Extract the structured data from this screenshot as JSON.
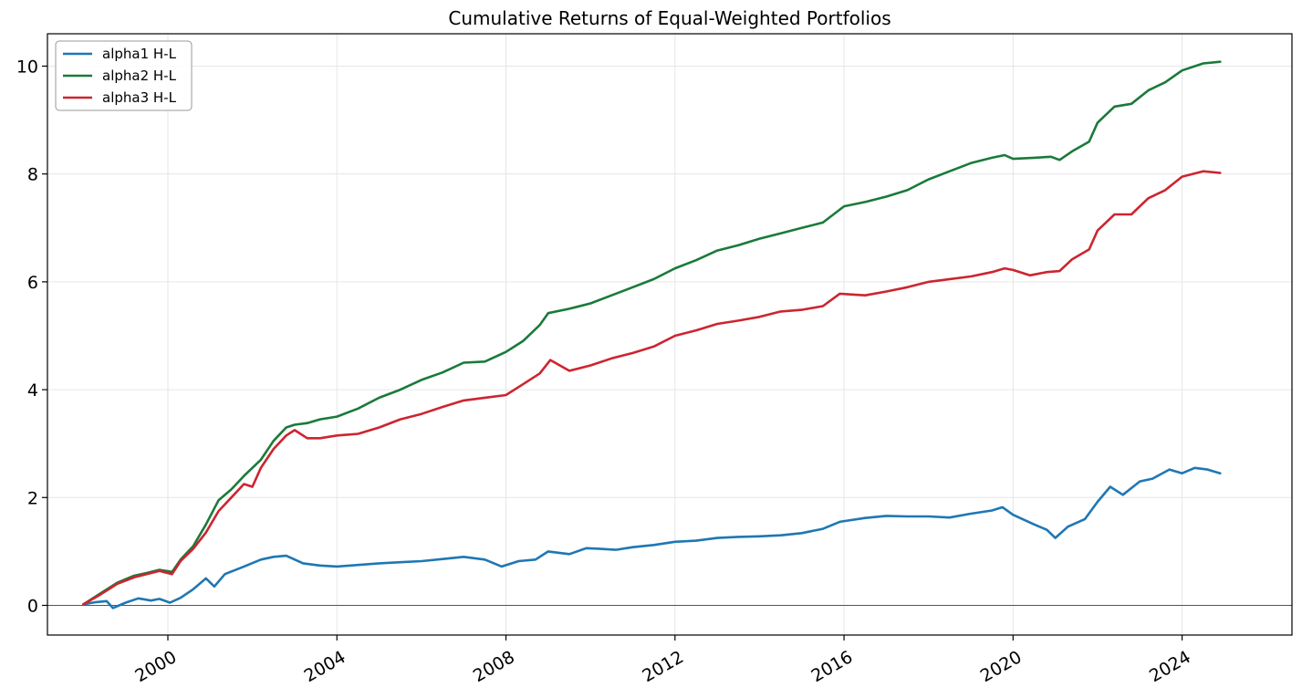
{
  "chart_data": {
    "type": "line",
    "title": "Cumulative Returns of Equal-Weighted Portfolios",
    "xlabel": "",
    "ylabel": "",
    "xlim": [
      1997.15,
      2026.6
    ],
    "ylim": [
      -0.55,
      10.6
    ],
    "x_ticks": [
      2000,
      2004,
      2008,
      2012,
      2016,
      2020,
      2024
    ],
    "x_tick_labels": [
      "2000",
      "2004",
      "2008",
      "2012",
      "2016",
      "2020",
      "2024"
    ],
    "y_ticks": [
      0,
      2,
      4,
      6,
      8,
      10
    ],
    "y_tick_labels": [
      "0",
      "2",
      "4",
      "6",
      "8",
      "10"
    ],
    "grid": true,
    "zero_line": true,
    "legend_position": "top-left",
    "colors": {
      "alpha1": "#1f77b4",
      "alpha2": "#1a7a3a",
      "alpha3": "#cc2530",
      "zero_line": "#555555"
    },
    "series": [
      {
        "name": "alpha1 H-L",
        "color": "#1f77b4",
        "points": [
          [
            1998.0,
            0.02
          ],
          [
            1998.3,
            0.06
          ],
          [
            1998.55,
            0.08
          ],
          [
            1998.7,
            -0.05
          ],
          [
            1999.0,
            0.05
          ],
          [
            1999.3,
            0.13
          ],
          [
            1999.6,
            0.09
          ],
          [
            1999.8,
            0.12
          ],
          [
            2000.05,
            0.05
          ],
          [
            2000.3,
            0.14
          ],
          [
            2000.6,
            0.3
          ],
          [
            2000.9,
            0.5
          ],
          [
            2001.1,
            0.35
          ],
          [
            2001.35,
            0.58
          ],
          [
            2001.8,
            0.72
          ],
          [
            2002.2,
            0.85
          ],
          [
            2002.5,
            0.9
          ],
          [
            2002.8,
            0.92
          ],
          [
            2003.2,
            0.78
          ],
          [
            2003.6,
            0.74
          ],
          [
            2004.0,
            0.72
          ],
          [
            2004.5,
            0.75
          ],
          [
            2005.0,
            0.78
          ],
          [
            2005.5,
            0.8
          ],
          [
            2006.0,
            0.82
          ],
          [
            2006.5,
            0.86
          ],
          [
            2007.0,
            0.9
          ],
          [
            2007.5,
            0.85
          ],
          [
            2007.9,
            0.72
          ],
          [
            2008.3,
            0.82
          ],
          [
            2008.7,
            0.85
          ],
          [
            2009.0,
            1.0
          ],
          [
            2009.5,
            0.95
          ],
          [
            2009.9,
            1.06
          ],
          [
            2010.2,
            1.05
          ],
          [
            2010.6,
            1.03
          ],
          [
            2011.0,
            1.08
          ],
          [
            2011.5,
            1.12
          ],
          [
            2012.0,
            1.18
          ],
          [
            2012.5,
            1.2
          ],
          [
            2013.0,
            1.25
          ],
          [
            2013.5,
            1.27
          ],
          [
            2014.0,
            1.28
          ],
          [
            2014.5,
            1.3
          ],
          [
            2015.0,
            1.34
          ],
          [
            2015.5,
            1.42
          ],
          [
            2015.9,
            1.55
          ],
          [
            2016.5,
            1.62
          ],
          [
            2017.0,
            1.66
          ],
          [
            2017.5,
            1.65
          ],
          [
            2018.0,
            1.65
          ],
          [
            2018.5,
            1.63
          ],
          [
            2019.0,
            1.7
          ],
          [
            2019.5,
            1.76
          ],
          [
            2019.75,
            1.82
          ],
          [
            2020.0,
            1.68
          ],
          [
            2020.5,
            1.5
          ],
          [
            2020.8,
            1.4
          ],
          [
            2021.0,
            1.25
          ],
          [
            2021.3,
            1.46
          ],
          [
            2021.7,
            1.6
          ],
          [
            2022.0,
            1.92
          ],
          [
            2022.3,
            2.2
          ],
          [
            2022.6,
            2.05
          ],
          [
            2023.0,
            2.3
          ],
          [
            2023.3,
            2.35
          ],
          [
            2023.7,
            2.52
          ],
          [
            2024.0,
            2.45
          ],
          [
            2024.3,
            2.55
          ],
          [
            2024.6,
            2.52
          ],
          [
            2024.9,
            2.45
          ]
        ]
      },
      {
        "name": "alpha2 H-L",
        "color": "#1a7a3a",
        "points": [
          [
            1998.0,
            0.02
          ],
          [
            1998.4,
            0.22
          ],
          [
            1998.8,
            0.42
          ],
          [
            1999.2,
            0.55
          ],
          [
            1999.5,
            0.6
          ],
          [
            1999.8,
            0.66
          ],
          [
            2000.1,
            0.62
          ],
          [
            2000.3,
            0.85
          ],
          [
            2000.6,
            1.1
          ],
          [
            2000.9,
            1.5
          ],
          [
            2001.2,
            1.95
          ],
          [
            2001.5,
            2.15
          ],
          [
            2001.8,
            2.4
          ],
          [
            2002.2,
            2.7
          ],
          [
            2002.5,
            3.05
          ],
          [
            2002.8,
            3.3
          ],
          [
            2003.0,
            3.35
          ],
          [
            2003.3,
            3.38
          ],
          [
            2003.6,
            3.45
          ],
          [
            2004.0,
            3.5
          ],
          [
            2004.5,
            3.65
          ],
          [
            2005.0,
            3.85
          ],
          [
            2005.5,
            4.0
          ],
          [
            2006.0,
            4.18
          ],
          [
            2006.5,
            4.32
          ],
          [
            2007.0,
            4.5
          ],
          [
            2007.5,
            4.52
          ],
          [
            2008.0,
            4.7
          ],
          [
            2008.4,
            4.9
          ],
          [
            2008.8,
            5.2
          ],
          [
            2009.0,
            5.42
          ],
          [
            2009.5,
            5.5
          ],
          [
            2010.0,
            5.6
          ],
          [
            2010.5,
            5.75
          ],
          [
            2011.0,
            5.9
          ],
          [
            2011.5,
            6.05
          ],
          [
            2012.0,
            6.25
          ],
          [
            2012.5,
            6.4
          ],
          [
            2013.0,
            6.58
          ],
          [
            2013.5,
            6.68
          ],
          [
            2014.0,
            6.8
          ],
          [
            2014.5,
            6.9
          ],
          [
            2015.0,
            7.0
          ],
          [
            2015.5,
            7.1
          ],
          [
            2016.0,
            7.4
          ],
          [
            2016.5,
            7.48
          ],
          [
            2017.0,
            7.58
          ],
          [
            2017.5,
            7.7
          ],
          [
            2018.0,
            7.9
          ],
          [
            2018.5,
            8.05
          ],
          [
            2019.0,
            8.2
          ],
          [
            2019.5,
            8.3
          ],
          [
            2019.8,
            8.35
          ],
          [
            2020.0,
            8.28
          ],
          [
            2020.5,
            8.3
          ],
          [
            2020.9,
            8.32
          ],
          [
            2021.1,
            8.26
          ],
          [
            2021.4,
            8.42
          ],
          [
            2021.8,
            8.6
          ],
          [
            2022.0,
            8.95
          ],
          [
            2022.4,
            9.25
          ],
          [
            2022.8,
            9.3
          ],
          [
            2023.2,
            9.55
          ],
          [
            2023.6,
            9.7
          ],
          [
            2024.0,
            9.92
          ],
          [
            2024.5,
            10.05
          ],
          [
            2024.9,
            10.08
          ]
        ]
      },
      {
        "name": "alpha3 H-L",
        "color": "#cc2530",
        "points": [
          [
            1998.0,
            0.02
          ],
          [
            1998.4,
            0.2
          ],
          [
            1998.8,
            0.4
          ],
          [
            1999.2,
            0.52
          ],
          [
            1999.5,
            0.58
          ],
          [
            1999.8,
            0.64
          ],
          [
            2000.1,
            0.58
          ],
          [
            2000.3,
            0.82
          ],
          [
            2000.6,
            1.05
          ],
          [
            2000.9,
            1.35
          ],
          [
            2001.2,
            1.75
          ],
          [
            2001.5,
            2.0
          ],
          [
            2001.8,
            2.25
          ],
          [
            2002.0,
            2.2
          ],
          [
            2002.2,
            2.55
          ],
          [
            2002.5,
            2.9
          ],
          [
            2002.8,
            3.15
          ],
          [
            2003.0,
            3.25
          ],
          [
            2003.3,
            3.1
          ],
          [
            2003.6,
            3.1
          ],
          [
            2004.0,
            3.15
          ],
          [
            2004.5,
            3.18
          ],
          [
            2005.0,
            3.3
          ],
          [
            2005.5,
            3.45
          ],
          [
            2006.0,
            3.55
          ],
          [
            2006.5,
            3.68
          ],
          [
            2007.0,
            3.8
          ],
          [
            2007.5,
            3.85
          ],
          [
            2008.0,
            3.9
          ],
          [
            2008.4,
            4.1
          ],
          [
            2008.8,
            4.3
          ],
          [
            2009.05,
            4.55
          ],
          [
            2009.5,
            4.35
          ],
          [
            2010.0,
            4.45
          ],
          [
            2010.5,
            4.58
          ],
          [
            2011.0,
            4.68
          ],
          [
            2011.5,
            4.8
          ],
          [
            2012.0,
            5.0
          ],
          [
            2012.5,
            5.1
          ],
          [
            2013.0,
            5.22
          ],
          [
            2013.5,
            5.28
          ],
          [
            2014.0,
            5.35
          ],
          [
            2014.5,
            5.45
          ],
          [
            2015.0,
            5.48
          ],
          [
            2015.5,
            5.55
          ],
          [
            2015.9,
            5.78
          ],
          [
            2016.5,
            5.75
          ],
          [
            2017.0,
            5.82
          ],
          [
            2017.5,
            5.9
          ],
          [
            2018.0,
            6.0
          ],
          [
            2018.5,
            6.05
          ],
          [
            2019.0,
            6.1
          ],
          [
            2019.5,
            6.18
          ],
          [
            2019.8,
            6.25
          ],
          [
            2020.0,
            6.22
          ],
          [
            2020.4,
            6.12
          ],
          [
            2020.8,
            6.18
          ],
          [
            2021.1,
            6.2
          ],
          [
            2021.4,
            6.42
          ],
          [
            2021.8,
            6.6
          ],
          [
            2022.0,
            6.95
          ],
          [
            2022.4,
            7.25
          ],
          [
            2022.8,
            7.25
          ],
          [
            2023.2,
            7.55
          ],
          [
            2023.6,
            7.7
          ],
          [
            2024.0,
            7.95
          ],
          [
            2024.5,
            8.05
          ],
          [
            2024.9,
            8.02
          ]
        ]
      }
    ]
  }
}
